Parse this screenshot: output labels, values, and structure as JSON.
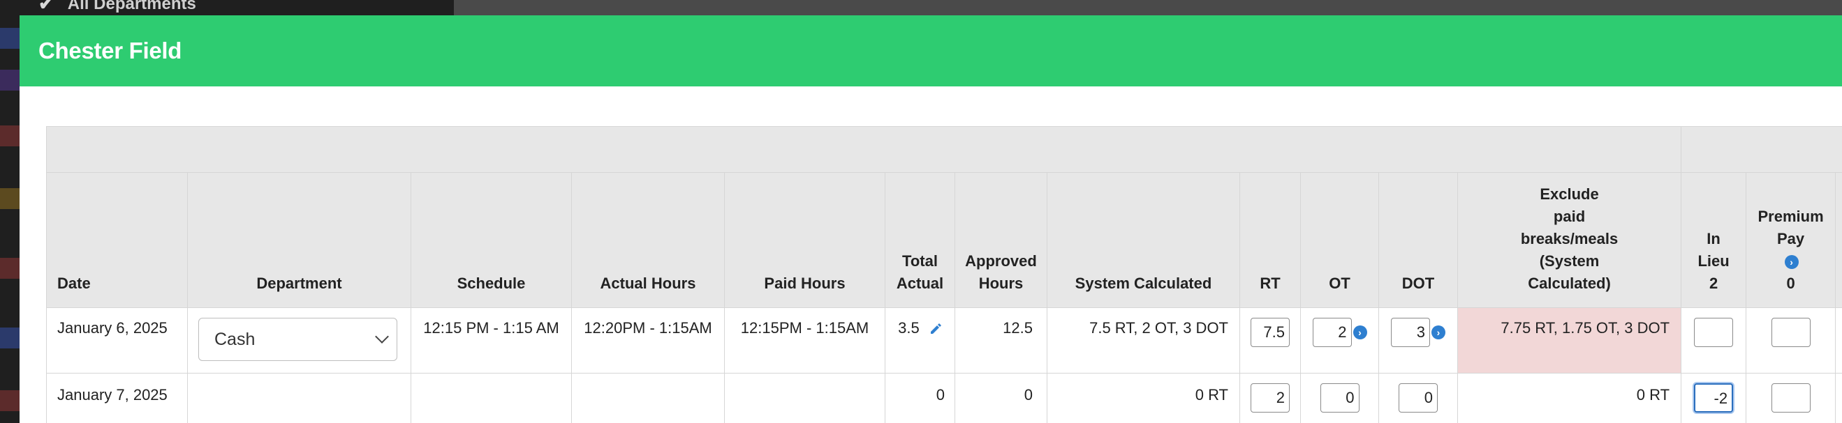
{
  "background": {
    "sidebar_item_label": "All Departments"
  },
  "modal": {
    "title": "Chester Field"
  },
  "columns": {
    "date": "Date",
    "department": "Department",
    "schedule": "Schedule",
    "actual_hours": "Actual Hours",
    "paid_hours": "Paid Hours",
    "total_actual_line1": "Total",
    "total_actual_line2": "Actual",
    "approved_line1": "Approved",
    "approved_line2": "Hours",
    "system_calculated": "System Calculated",
    "rt": "RT",
    "ot": "OT",
    "dot": "DOT",
    "exclude_line1": "Exclude",
    "exclude_line2": "paid",
    "exclude_line3": "breaks/meals",
    "exclude_line4": "(System",
    "exclude_line5": "Calculated)",
    "in_lieu_line1": "In",
    "in_lieu_line2": "Lieu",
    "in_lieu_count": "2",
    "premium_line1": "Premium",
    "premium_line2": "Pay",
    "premium_count": "0"
  },
  "rows": [
    {
      "date": "January 6, 2025",
      "department": "Cash",
      "schedule": "12:15 PM - 1:15 AM",
      "actual_hours": "12:20PM - 1:15AM",
      "paid_hours": "12:15PM - 1:15AM",
      "total_actual": "3.5",
      "approved_hours": "12.5",
      "system_calculated": "7.5 RT, 2 OT, 3 DOT",
      "rt": "7.5",
      "ot": "2",
      "dot": "3",
      "exclude": "7.75 RT, 1.75 OT, 3 DOT",
      "in_lieu": "",
      "premium": ""
    },
    {
      "date": "January 7, 2025",
      "department": "",
      "schedule": "",
      "actual_hours": "",
      "paid_hours": "",
      "total_actual": "0",
      "approved_hours": "0",
      "system_calculated": "0 RT",
      "rt": "2",
      "ot": "0",
      "dot": "0",
      "exclude": "0 RT",
      "in_lieu": "-2",
      "premium": ""
    }
  ],
  "colors": {
    "header_green": "#2ecc71",
    "table_header_bg": "#e7e7e7",
    "highlight_pink": "#f2d7d7",
    "link_blue": "#2e7fd0"
  }
}
